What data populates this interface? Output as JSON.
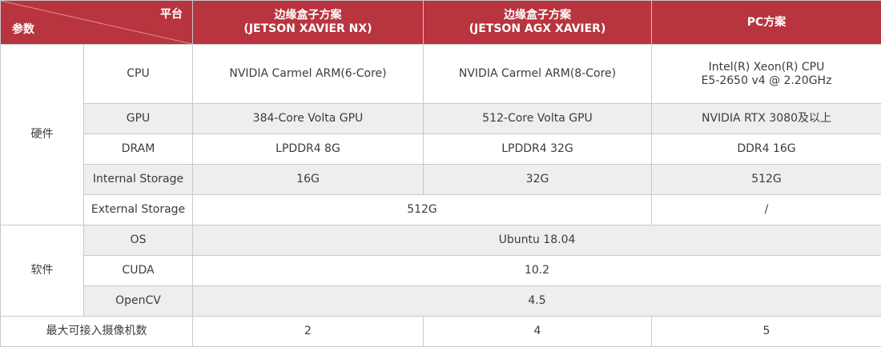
{
  "header": {
    "param_label": "参数",
    "platform_label": "平台",
    "col1_title": "边缘盒子方案",
    "col1_sub": "(JETSON XAVIER NX)",
    "col2_title": "边缘盒子方案",
    "col2_sub": "(JETSON AGX XAVIER)",
    "col3_title": "PC方案"
  },
  "hardware": {
    "group_label": "硬件",
    "cpu": {
      "label": "CPU",
      "nx": "NVIDIA Carmel ARM(6-Core)",
      "agx": "NVIDIA Carmel ARM(8-Core)",
      "pc_line1": "Intel(R) Xeon(R) CPU",
      "pc_line2": "E5-2650 v4 @ 2.20GHz"
    },
    "gpu": {
      "label": "GPU",
      "nx": "384-Core Volta GPU",
      "agx": "512-Core Volta GPU",
      "pc": "NVIDIA RTX 3080及以上"
    },
    "dram": {
      "label": "DRAM",
      "nx": "LPDDR4 8G",
      "agx": "LPDDR4 32G",
      "pc": "DDR4 16G"
    },
    "internal_storage": {
      "label": "Internal Storage",
      "nx": "16G",
      "agx": "32G",
      "pc": "512G"
    },
    "external_storage": {
      "label": "External Storage",
      "edge": "512G",
      "pc": "/"
    }
  },
  "software": {
    "group_label": "软件",
    "os": {
      "label": "OS",
      "value": "Ubuntu 18.04"
    },
    "cuda": {
      "label": "CUDA",
      "value": "10.2"
    },
    "opencv": {
      "label": "OpenCV",
      "value": "4.5"
    }
  },
  "cameras": {
    "label": "最大可接入摄像机数",
    "nx": "2",
    "agx": "4",
    "pc": "5"
  },
  "colors": {
    "header_bg": "#b8343f",
    "row_alt_bg": "#eeeeee",
    "border": "#c8c8c8"
  }
}
